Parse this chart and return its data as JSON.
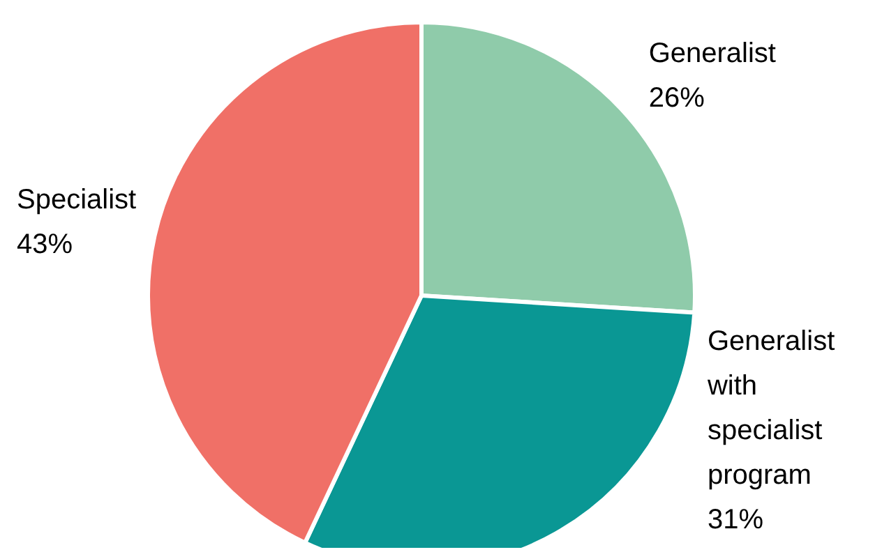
{
  "chart_data": {
    "type": "pie",
    "categories": [
      "Generalist",
      "Generalist with specialist program",
      "Specialist"
    ],
    "values": [
      26,
      31,
      43
    ],
    "value_labels": [
      "26%",
      "31%",
      "43%"
    ],
    "colors": [
      "#8fcbaa",
      "#0a9794",
      "#f07067"
    ],
    "legend": false
  }
}
